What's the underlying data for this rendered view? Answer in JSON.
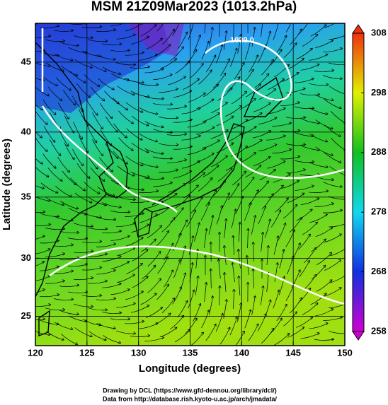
{
  "title": "MSM 21Z09Mar2023 (1013.2hPa)",
  "map": {
    "projection": "mercator",
    "xlabel": "Longitude (degrees)",
    "ylabel": "Latitude  (degrees)",
    "xlim": [
      120,
      150
    ],
    "ylim": [
      22.4,
      47.6
    ],
    "xticks": [
      120,
      125,
      130,
      135,
      140,
      145,
      150
    ],
    "yticks": [
      25,
      30,
      35,
      40,
      45
    ],
    "grid": true,
    "contour_label": "1020.0"
  },
  "colorbar": {
    "lim": [
      258,
      308
    ],
    "ticks": [
      258,
      268,
      278,
      288,
      298,
      308
    ],
    "colors": [
      "#d000d0",
      "#1030e0",
      "#10d8f0",
      "#10c020",
      "#e0f000",
      "#f03010"
    ]
  },
  "footer": [
    "Drawing by DCL (https://www.gfd-dennou.org/library/dcl/)",
    "Data from http://database.rish.kyoto-u.ac.jp/arch/jmadata/"
  ]
}
